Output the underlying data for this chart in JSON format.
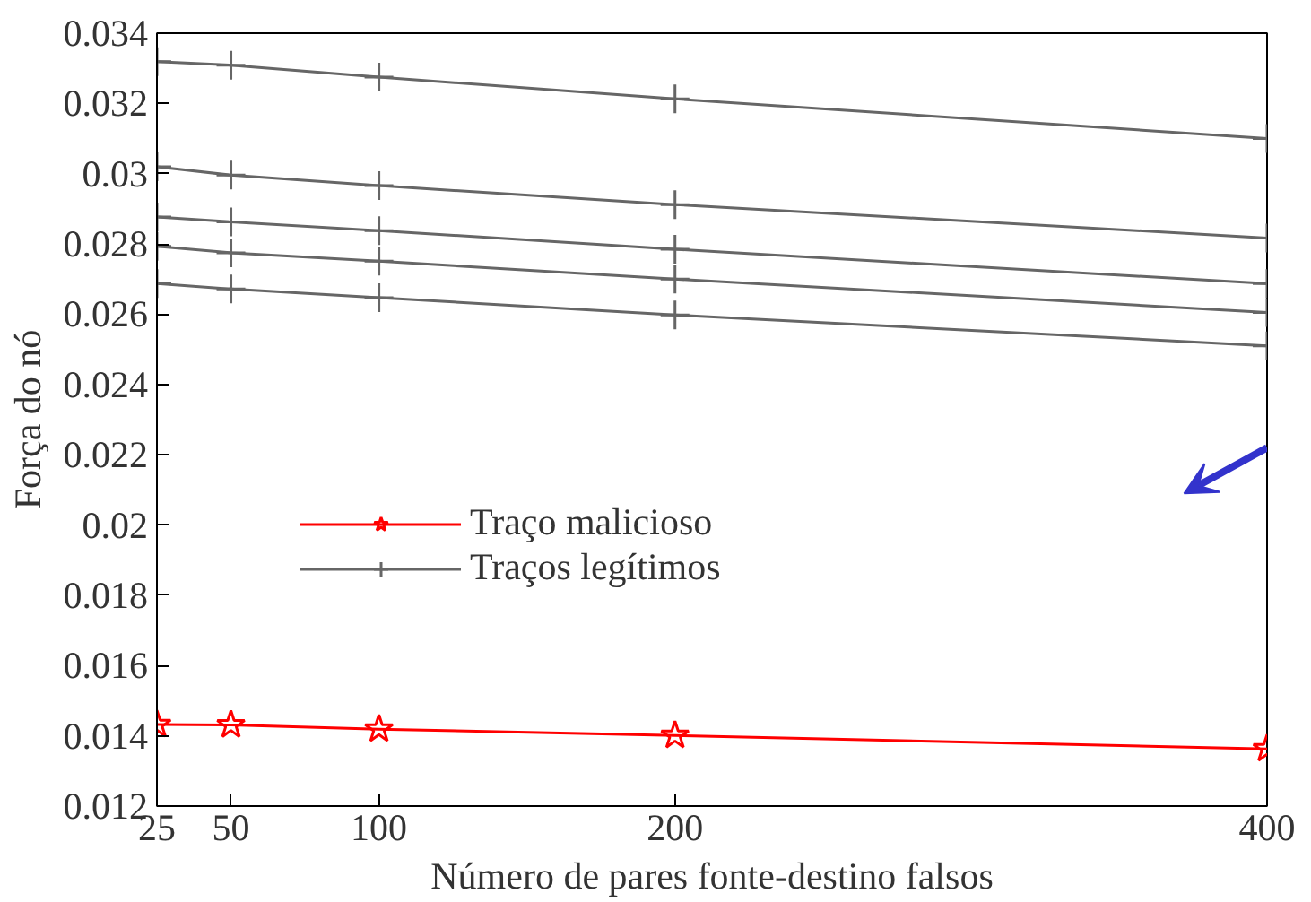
{
  "chart_data": {
    "type": "line",
    "xlabel": "Número de pares fonte-destino falsos",
    "ylabel": "Força do nó",
    "x": [
      25,
      50,
      100,
      200,
      400
    ],
    "series": [
      {
        "name": "Traço malicioso",
        "color": "#ff0000",
        "marker": "star",
        "values": [
          0.01432,
          0.01431,
          0.01419,
          0.01401,
          0.01363
        ]
      },
      {
        "name": "Traços legítimos",
        "color": "#666666",
        "marker": "cross",
        "values": [
          0.03319,
          0.03309,
          0.03275,
          0.03213,
          0.031
        ]
      },
      {
        "color": "#666666",
        "marker": "cross",
        "values": [
          0.0302,
          0.02996,
          0.02966,
          0.02912,
          0.02817
        ]
      },
      {
        "color": "#666666",
        "marker": "cross",
        "values": [
          0.02877,
          0.02863,
          0.02838,
          0.02785,
          0.02687
        ]
      },
      {
        "color": "#666666",
        "marker": "cross",
        "values": [
          0.02793,
          0.02775,
          0.02751,
          0.027,
          0.02605
        ]
      },
      {
        "color": "#666666",
        "marker": "cross",
        "values": [
          0.02687,
          0.02672,
          0.02647,
          0.02598,
          0.0251
        ]
      }
    ],
    "xlim": [
      25,
      400
    ],
    "xticks": [
      25,
      50,
      100,
      200,
      400
    ],
    "ylim": [
      0.012,
      0.034
    ],
    "yticks": [
      0.012,
      0.014,
      0.016,
      0.018,
      0.02,
      0.022,
      0.024,
      0.026,
      0.028,
      0.03,
      0.032,
      0.034
    ],
    "grid": false,
    "legend": "center",
    "line_style": "solid"
  }
}
